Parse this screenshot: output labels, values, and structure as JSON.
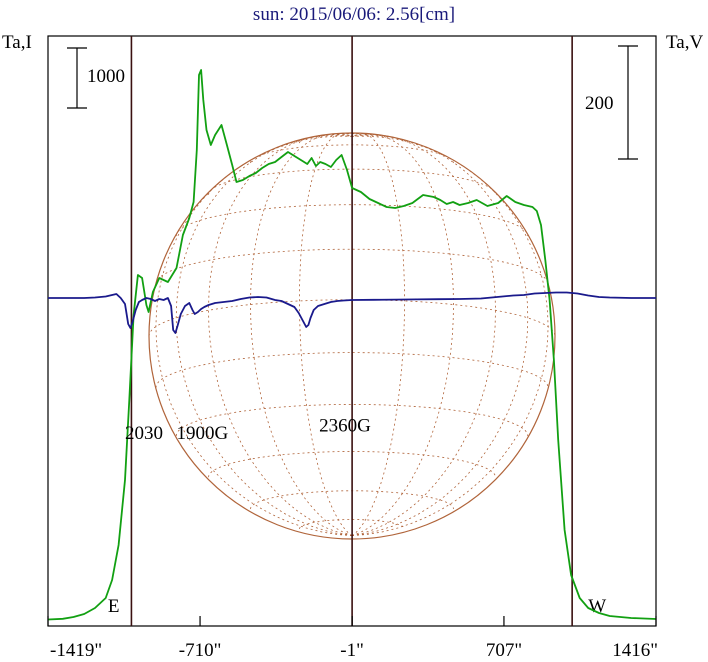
{
  "chart_data": {
    "type": "line",
    "title": "sun: 2015/06/06: 2.56[cm]",
    "ylabel_left": "Ta,I",
    "ylabel_right": "Ta,V",
    "xlim": [
      -1419,
      1416
    ],
    "xticks": [
      "-1419\"",
      "-710\"",
      "-1\"",
      "707\"",
      "1416\""
    ],
    "xtick_values": [
      -1419,
      -710,
      -1,
      707,
      1416
    ],
    "scalebars": [
      {
        "label": "1000",
        "side": "left",
        "span": 1000
      },
      {
        "label": "200",
        "side": "right",
        "span": 200
      }
    ],
    "limb_lines": [
      -1030,
      -1,
      1025
    ],
    "limb_labels": [
      {
        "text": "E",
        "x": -1140
      },
      {
        "text": "W",
        "x": 1100
      }
    ],
    "annotations": [
      {
        "text": "2030",
        "x": -1060,
        "y": -310
      },
      {
        "text": "1900G",
        "x": -820,
        "y": -310
      },
      {
        "text": "2360G",
        "x": -155,
        "y": -235
      }
    ],
    "grid": false,
    "series": [
      {
        "name": "",
        "color": "#12a012",
        "x": [
          -1419,
          -1350,
          -1300,
          -1250,
          -1200,
          -1150,
          -1120,
          -1090,
          -1060,
          -1040,
          -1020,
          -1000,
          -980,
          -960,
          -950,
          -930,
          -900,
          -860,
          -820,
          -790,
          -760,
          -740,
          -725,
          -715,
          -705,
          -695,
          -680,
          -660,
          -640,
          -610,
          -585,
          -560,
          -540,
          -510,
          -480,
          -450,
          -420,
          -390,
          -360,
          -330,
          -300,
          -270,
          -240,
          -210,
          -190,
          -170,
          -150,
          -125,
          -100,
          -75,
          -50,
          -25,
          -1,
          40,
          80,
          120,
          160,
          200,
          240,
          280,
          330,
          380,
          410,
          440,
          470,
          500,
          540,
          580,
          630,
          680,
          720,
          760,
          800,
          840,
          860,
          880,
          900,
          920,
          940,
          960,
          990,
          1020,
          1060,
          1100,
          1150,
          1200,
          1300,
          1416
        ],
        "values": [
          5,
          12,
          30,
          60,
          120,
          220,
          400,
          750,
          1400,
          2200,
          3050,
          3450,
          3420,
          3150,
          3080,
          3280,
          3420,
          3380,
          3520,
          3850,
          4020,
          4180,
          4700,
          5450,
          5500,
          5200,
          4900,
          4750,
          4850,
          4950,
          4750,
          4550,
          4380,
          4400,
          4440,
          4470,
          4520,
          4560,
          4580,
          4630,
          4680,
          4640,
          4600,
          4560,
          4620,
          4540,
          4580,
          4560,
          4530,
          4600,
          4650,
          4500,
          4320,
          4280,
          4210,
          4170,
          4130,
          4120,
          4140,
          4170,
          4250,
          4230,
          4200,
          4160,
          4180,
          4150,
          4170,
          4200,
          4140,
          4170,
          4240,
          4180,
          4150,
          4130,
          4090,
          3950,
          3600,
          3200,
          2600,
          1800,
          900,
          450,
          220,
          120,
          70,
          40,
          20,
          10
        ]
      },
      {
        "name": "",
        "color": "#1a1a8c",
        "x": [
          -1419,
          -1350,
          -1300,
          -1250,
          -1200,
          -1150,
          -1120,
          -1100,
          -1080,
          -1060,
          -1045,
          -1035,
          -1025,
          -1010,
          -995,
          -980,
          -960,
          -940,
          -920,
          -900,
          -880,
          -860,
          -845,
          -835,
          -825,
          -815,
          -800,
          -780,
          -760,
          -745,
          -735,
          -720,
          -705,
          -690,
          -670,
          -640,
          -600,
          -560,
          -520,
          -480,
          -440,
          -400,
          -360,
          -330,
          -300,
          -270,
          -250,
          -230,
          -215,
          -205,
          -195,
          -180,
          -160,
          -130,
          -100,
          -70,
          -40,
          -1,
          100,
          200,
          300,
          400,
          500,
          600,
          650,
          700,
          750,
          800,
          850,
          900,
          950,
          1000,
          1050,
          1100,
          1150,
          1200,
          1300,
          1416
        ],
        "values": [
          0,
          0,
          0,
          0,
          5,
          15,
          30,
          40,
          0,
          -60,
          -260,
          -300,
          -240,
          -120,
          -40,
          -20,
          0,
          -10,
          -30,
          -10,
          -20,
          0,
          -80,
          -320,
          -350,
          -280,
          -160,
          -80,
          -50,
          -120,
          -160,
          -140,
          -110,
          -90,
          -70,
          -50,
          -40,
          -30,
          -10,
          5,
          10,
          5,
          -20,
          -30,
          -60,
          -90,
          -150,
          -230,
          -290,
          -270,
          -200,
          -120,
          -80,
          -60,
          -40,
          -30,
          -25,
          -20,
          -18,
          -16,
          -14,
          -12,
          -10,
          -5,
          5,
          15,
          25,
          30,
          45,
          50,
          55,
          55,
          45,
          25,
          10,
          5,
          0,
          0
        ]
      }
    ]
  }
}
